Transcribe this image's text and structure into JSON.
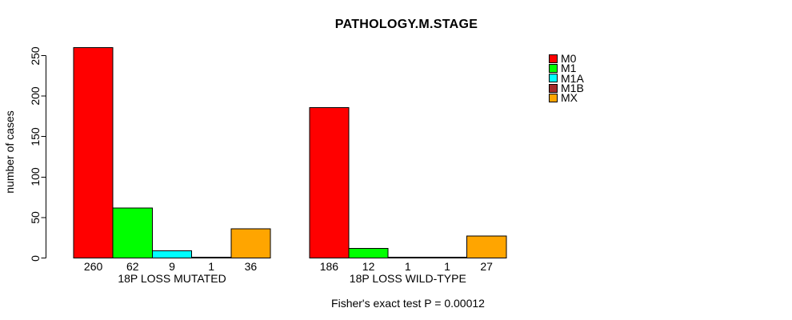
{
  "title": "PATHOLOGY.M.STAGE",
  "chart_data": {
    "type": "bar",
    "title": "PATHOLOGY.M.STAGE",
    "xlabel": "",
    "ylabel": "number of cases",
    "ylim": [
      0,
      250
    ],
    "yticks": [
      0,
      50,
      100,
      150,
      200,
      250
    ],
    "grid": false,
    "legend_position": "right-outside",
    "bar_border_color": "#000000",
    "categories": [
      "M0",
      "M1",
      "M1A",
      "M1B",
      "MX"
    ],
    "legend": {
      "entries": [
        {
          "label": "M0",
          "color": "#FF0000"
        },
        {
          "label": "M1",
          "color": "#00FF00"
        },
        {
          "label": "M1A",
          "color": "#00FFFF"
        },
        {
          "label": "M1B",
          "color": "#A52A2A"
        },
        {
          "label": "MX",
          "color": "#FFA500"
        }
      ]
    },
    "groups": [
      {
        "label": "18P LOSS MUTATED",
        "values": [
          260,
          62,
          9,
          1,
          36
        ]
      },
      {
        "label": "18P LOSS WILD-TYPE",
        "values": [
          186,
          12,
          1,
          1,
          27
        ]
      }
    ],
    "series": [
      {
        "name": "M0",
        "color": "#FF0000",
        "values": [
          260,
          186
        ]
      },
      {
        "name": "M1",
        "color": "#00FF00",
        "values": [
          62,
          12
        ]
      },
      {
        "name": "M1A",
        "color": "#00FFFF",
        "values": [
          9,
          1
        ]
      },
      {
        "name": "M1B",
        "color": "#A52A2A",
        "values": [
          1,
          1
        ]
      },
      {
        "name": "MX",
        "color": "#FFA500",
        "values": [
          36,
          27
        ]
      }
    ],
    "bar_value_labels_shown": true,
    "annotation": "Fisher's exact test P = 0.00012"
  }
}
